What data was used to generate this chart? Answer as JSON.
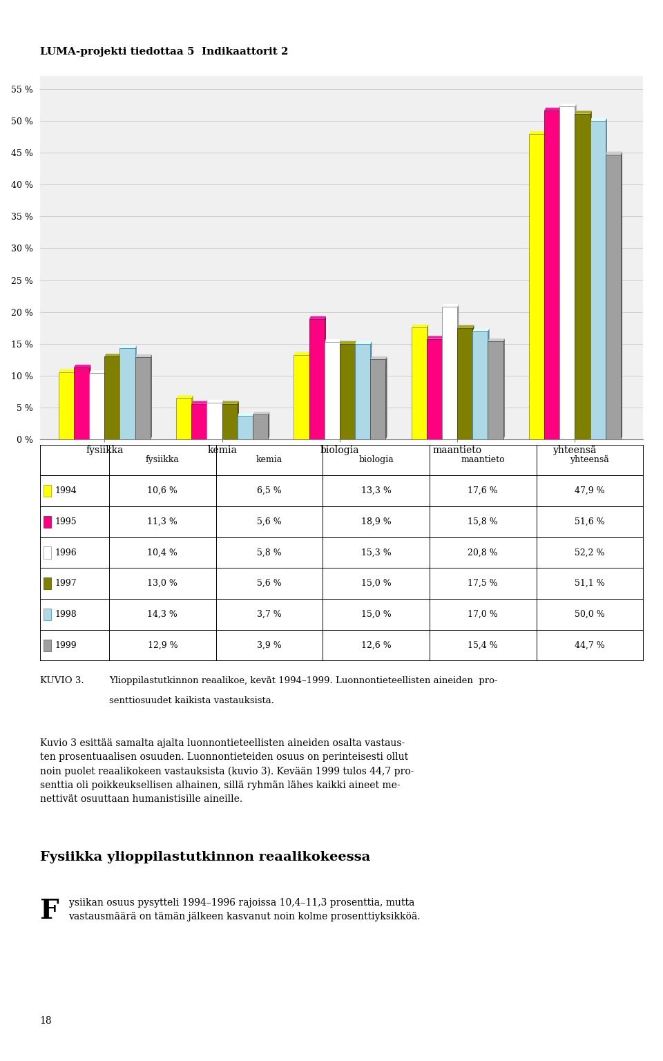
{
  "header": "LUMA-projekti tiedottaa 5  Indikaattorit 2",
  "categories": [
    "fysiikka",
    "kemia",
    "biologia",
    "maantieto",
    "yhteensä"
  ],
  "years": [
    1994,
    1995,
    1996,
    1997,
    1998,
    1999
  ],
  "values": {
    "1994": [
      10.6,
      6.5,
      13.3,
      17.6,
      47.9
    ],
    "1995": [
      11.3,
      5.6,
      18.9,
      15.8,
      51.6
    ],
    "1996": [
      10.4,
      5.8,
      15.3,
      20.8,
      52.2
    ],
    "1997": [
      13.0,
      5.6,
      15.0,
      17.5,
      51.1
    ],
    "1998": [
      14.3,
      3.7,
      15.0,
      17.0,
      50.0
    ],
    "1999": [
      12.9,
      3.9,
      12.6,
      15.4,
      44.7
    ]
  },
  "bar_colors": [
    "#FFFF00",
    "#FF0080",
    "#FFFFFF",
    "#808000",
    "#ADD8E6",
    "#A0A0A0"
  ],
  "bar_edge_colors": [
    "#999900",
    "#880044",
    "#888888",
    "#444400",
    "#4488AA",
    "#505050"
  ],
  "ylim": [
    0,
    57
  ],
  "yticks": [
    0,
    5,
    10,
    15,
    20,
    25,
    30,
    35,
    40,
    45,
    50,
    55
  ],
  "ytick_labels": [
    "0 %",
    "5 %",
    "10 %",
    "15 %",
    "20 %",
    "25 %",
    "30 %",
    "35 %",
    "40 %",
    "45 %",
    "50 %",
    "55 %"
  ],
  "year_row_data": [
    [
      "1994",
      "10,6 %",
      "6,5 %",
      "13,3 %",
      "17,6 %",
      "47,9 %"
    ],
    [
      "1995",
      "11,3 %",
      "5,6 %",
      "18,9 %",
      "15,8 %",
      "51,6 %"
    ],
    [
      "1996",
      "10,4 %",
      "5,8 %",
      "15,3 %",
      "20,8 %",
      "52,2 %"
    ],
    [
      "1997",
      "13,0 %",
      "5,6 %",
      "15,0 %",
      "17,5 %",
      "51,1 %"
    ],
    [
      "1998",
      "14,3 %",
      "3,7 %",
      "15,0 %",
      "17,0 %",
      "50,0 %"
    ],
    [
      "1999",
      "12,9 %",
      "3,9 %",
      "12,6 %",
      "15,4 %",
      "44,7 %"
    ]
  ],
  "col_headers": [
    "",
    "fysiikka",
    "kemia",
    "biologia",
    "maantieto",
    "yhteensä"
  ],
  "kuvio_label": "KUVIO 3.",
  "kuvio_text1": "Ylioppilastutkinnon reaalikoe, kevät 1994–1999. Luonnontieteellisten aineiden  pro-",
  "kuvio_text2": "senttiosuudet kaikista vastauksista.",
  "body_text": "Kuvio 3 esittää samalta ajalta luonnontieteellisten aineiden osalta vastaus-\nten prosentuaalisen osuuden. Luonnontieteiden osuus on perinteisesti ollut\nnoin puolet reaalikokeen vastauksista (kuvio 3). Kevään 1999 tulos 44,7 pro-\nsenttia oli poikkeuksellisen alhainen, sillä ryhmän lähes kaikki aineet me-\nnettivät osuuttaan humanistisille aineille.",
  "section_title": "Fysiikka ylioppilastutkinnon reaalikokeessa",
  "drop_cap": "F",
  "section_text": "ysiikan osuus pysytteli 1994–1996 rajoissa 10,4–11,3 prosenttia, mutta\nvastausmäärä on tämän jälkeen kasvanut noin kolme prosenttiyksikköä.",
  "page_number": "18",
  "background_color": "#FFFFFF",
  "chart_bg_color": "#F0F0F0"
}
